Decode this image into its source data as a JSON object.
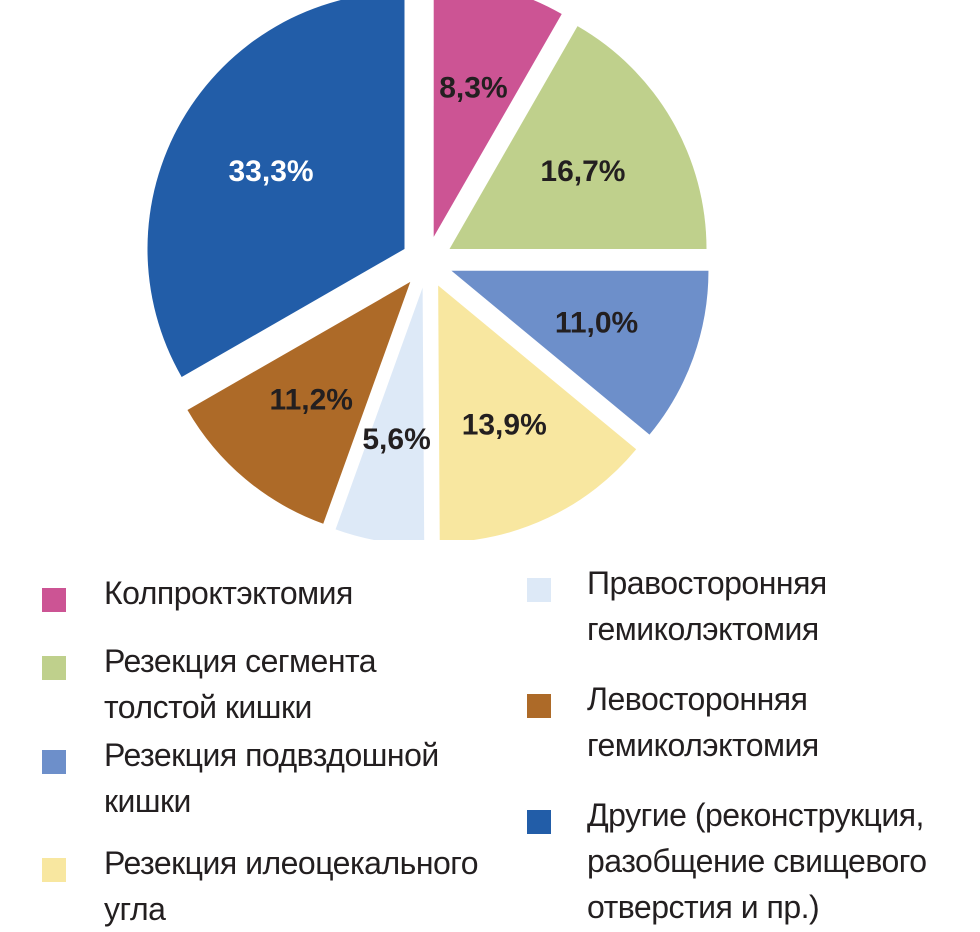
{
  "chart_data": {
    "type": "pie",
    "title": "",
    "unit": "%",
    "slices": [
      {
        "label": "Колпроктэктомия",
        "value": 8.3,
        "value_label": "8,3%",
        "color": "#cc5494",
        "label_color": "#231f20"
      },
      {
        "label": "Резекция сегмента толстой кишки",
        "value": 16.7,
        "value_label": "16,7%",
        "color": "#bfd08c",
        "label_color": "#231f20"
      },
      {
        "label": "Резекция подвздошной кишки",
        "value": 11.0,
        "value_label": "11,0%",
        "color": "#6d8fca",
        "label_color": "#231f20"
      },
      {
        "label": "Резекция илеоцекального угла",
        "value": 13.9,
        "value_label": "13,9%",
        "color": "#f8e7a0",
        "label_color": "#231f20"
      },
      {
        "label": "Правосторонняя гемиколэктомия",
        "value": 5.6,
        "value_label": "5,6%",
        "color": "#dde9f7",
        "label_color": "#231f20"
      },
      {
        "label": "Левосторонняя гемиколэктомия",
        "value": 11.2,
        "value_label": "11,2%",
        "color": "#ad6a28",
        "label_color": "#231f20"
      },
      {
        "label": "Другие (реконструкция, разобщение свищевого отверстия и пр.)",
        "value": 33.3,
        "value_label": "33,3%",
        "color": "#225da8",
        "label_color": "#ffffff"
      }
    ],
    "legend_placement": "bottom"
  },
  "legend": {
    "col1": [
      {
        "text": "Колпроктэктомия",
        "color": "#cc5494"
      },
      {
        "text": "Резекция сегмента\nтолстой кишки",
        "color": "#bfd08c"
      },
      {
        "text": "Резекция подвздошной\nкишки",
        "color": "#6d8fca"
      },
      {
        "text": "Резекция илеоцекального\nугла",
        "color": "#f8e7a0"
      }
    ],
    "col2": [
      {
        "text": "Правосторонняя\nгемиколэктомия",
        "color": "#dde9f7"
      },
      {
        "text": "Левосторонняя\nгемиколэктомия",
        "color": "#ad6a28"
      },
      {
        "text": "Другие (реконструкция,\nразобщение свищевого\nотверстия и пр.)",
        "color": "#225da8"
      }
    ]
  }
}
